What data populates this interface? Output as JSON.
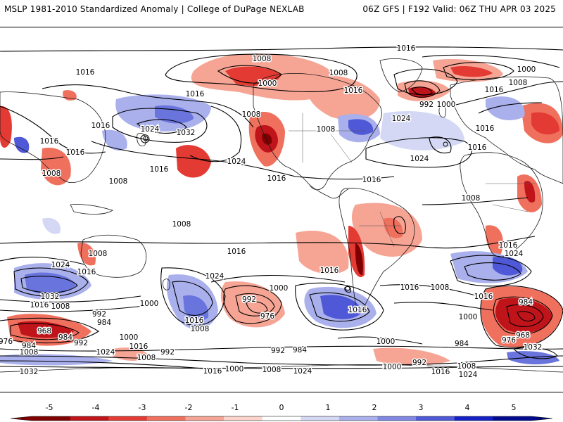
{
  "header": {
    "left_title": "MSLP 1981-2010 Standardized Anomaly | College of DuPage NEXLAB",
    "right_title": "06Z GFS | F192 Valid: 06Z THU APR 03 2025"
  },
  "colorbar": {
    "ticks": [
      "-5",
      "-4",
      "-3",
      "-2",
      "-1",
      "0",
      "1",
      "2",
      "3",
      "4",
      "5"
    ],
    "colors": [
      "#7f0000",
      "#c0141b",
      "#e33a33",
      "#f0705e",
      "#f6a595",
      "#fbd5cc",
      "#ffffff",
      "#d4d8f4",
      "#a9b0ec",
      "#7f87e2",
      "#4f58d6",
      "#1520c4",
      "#000a8c"
    ]
  },
  "map": {
    "colors": {
      "ocean": "#ffffff",
      "coastline": "#1a1a1a",
      "contour": "#000000",
      "neg_anomaly": "#e03c36",
      "pos_anomaly": "#6a74dd"
    },
    "contour_labels": [
      "1016",
      "1008",
      "1000",
      "1008",
      "1016",
      "1000",
      "992",
      "1000",
      "1008",
      "1016",
      "1016",
      "1016",
      "1024",
      "1032",
      "1024",
      "1016",
      "1016",
      "1008",
      "1008",
      "1024",
      "1016",
      "1016",
      "1016",
      "1016",
      "1024",
      "1016",
      "1008",
      "1008",
      "1016",
      "1008",
      "1008",
      "1016",
      "1024",
      "1016",
      "1008",
      "1016",
      "1024",
      "1032",
      "1016",
      "1008",
      "992",
      "984",
      "1024",
      "1000",
      "1016",
      "1008",
      "1000",
      "992",
      "976",
      "992",
      "984",
      "968",
      "1016",
      "1008",
      "1000",
      "1016",
      "976",
      "984",
      "992",
      "1024",
      "1032",
      "1000",
      "992",
      "1008",
      "1016",
      "984",
      "1000",
      "1024",
      "1000",
      "1008",
      "1016",
      "1008",
      "1024",
      "1016",
      "1024",
      "984",
      "968",
      "976",
      "984",
      "1032",
      "992",
      "1000",
      "1008",
      "1016",
      "1024",
      "1008",
      "1016",
      "1000",
      "1008",
      "1008",
      "1016",
      "992",
      "1032",
      "1016",
      "1008",
      "1008",
      "1000",
      "1000",
      "1024"
    ]
  }
}
